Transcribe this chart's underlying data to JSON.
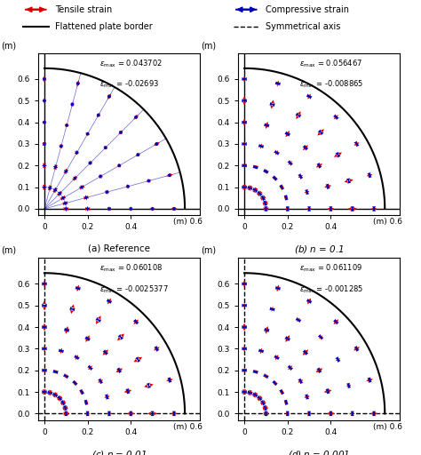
{
  "subplots": [
    {
      "label_prefix": "(a) Reference",
      "label_n": null,
      "eps_max": "0.043702",
      "eps_min": "-0.02693",
      "has_radial_lines": true,
      "dashed_axes": false
    },
    {
      "label_prefix": "(b) ",
      "label_n": "n = 0.1",
      "eps_max": "0.056467",
      "eps_min": "-0.008865",
      "has_radial_lines": false,
      "dashed_axes": false
    },
    {
      "label_prefix": "(c) ",
      "label_n": "n = 0.01",
      "eps_max": "0.060108",
      "eps_min": "-0.0025377",
      "has_radial_lines": false,
      "dashed_axes": true
    },
    {
      "label_prefix": "(d) ",
      "label_n": "n = 0.001",
      "eps_max": "0.061109",
      "eps_min": "-0.001285",
      "has_radial_lines": false,
      "dashed_axes": true
    }
  ],
  "R": 0.65,
  "tensile_color": "#dd0000",
  "compressive_color": "#0000bb",
  "fig_bg": "#ffffff"
}
